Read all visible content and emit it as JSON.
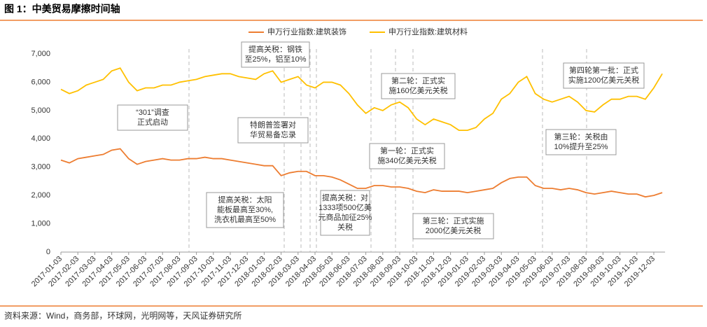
{
  "title": "图 1：中美贸易摩擦时间轴",
  "source": "资料来源：Wind，商务部，环球网，光明网等，天风证券研究所",
  "chart_data": {
    "type": "line",
    "categories": [
      "2017-01-03",
      null,
      "2017-02-03",
      null,
      "2017-03-03",
      null,
      "2017-04-03",
      null,
      "2017-05-03",
      null,
      "2017-06-03",
      null,
      "2017-07-03",
      null,
      "2017-08-03",
      null,
      "2017-09-03",
      null,
      "2017-10-03",
      null,
      "2017-11-03",
      null,
      "2017-12-03",
      null,
      "2018-01-03",
      null,
      "2018-02-03",
      null,
      "2018-03-03",
      null,
      "2018-04-03",
      null,
      "2018-05-03",
      null,
      "2018-06-03",
      null,
      "2018-07-03",
      null,
      "2018-08-03",
      null,
      "2018-09-03",
      null,
      "2018-10-03",
      null,
      "2018-11-03",
      null,
      "2018-12-03",
      null,
      "2019-01-03",
      null,
      "2019-02-03",
      null,
      "2019-03-03",
      null,
      "2019-04-03",
      null,
      "2019-05-03",
      null,
      "2019-06-03",
      null,
      "2019-07-03",
      null,
      "2019-08-03",
      null,
      "2019-09-03",
      null,
      "2019-10-03",
      null,
      "2019-11-03",
      null,
      "2019-12-03",
      null
    ],
    "series": [
      {
        "name": "申万行业指数:建筑装饰",
        "color": "#ed7d31",
        "values": [
          3250,
          3150,
          3300,
          3350,
          3400,
          3450,
          3600,
          3650,
          3300,
          3100,
          3200,
          3250,
          3300,
          3250,
          3250,
          3300,
          3300,
          3350,
          3300,
          3300,
          3250,
          3200,
          3150,
          3100,
          3050,
          3050,
          2700,
          2800,
          2850,
          2850,
          2700,
          2700,
          2650,
          2550,
          2400,
          2250,
          2250,
          2350,
          2350,
          2300,
          2300,
          2250,
          2150,
          2100,
          2200,
          2150,
          2150,
          2150,
          2100,
          2150,
          2200,
          2250,
          2450,
          2600,
          2650,
          2650,
          2350,
          2250,
          2250,
          2200,
          2250,
          2200,
          2100,
          2050,
          2100,
          2150,
          2100,
          2050,
          2050,
          1950,
          2000,
          2100
        ]
      },
      {
        "name": "申万行业指数:建筑材料",
        "color": "#ffc000",
        "values": [
          5750,
          5600,
          5700,
          5900,
          6000,
          6100,
          6400,
          6500,
          6000,
          5700,
          5800,
          5800,
          5900,
          5900,
          6000,
          6050,
          6100,
          6200,
          6250,
          6300,
          6300,
          6200,
          6150,
          6100,
          6300,
          6400,
          6000,
          6100,
          6200,
          5900,
          5800,
          6000,
          6000,
          5900,
          5600,
          5200,
          4900,
          5100,
          5000,
          5200,
          5300,
          5100,
          4700,
          4500,
          4700,
          4600,
          4500,
          4300,
          4300,
          4400,
          4700,
          4900,
          5400,
          5600,
          6000,
          6200,
          5600,
          5400,
          5300,
          5400,
          5500,
          5300,
          5000,
          4950,
          5200,
          5400,
          5400,
          5500,
          5500,
          5400,
          5800,
          6300
        ]
      }
    ],
    "ylim": [
      0,
      7000
    ],
    "yticks": [
      0,
      {
        "value": 1000,
        "label": "1,000"
      },
      {
        "value": 2000,
        "label": "2,000"
      },
      {
        "value": 3000,
        "label": "3,000"
      },
      {
        "value": 4000,
        "label": "4,000"
      },
      {
        "value": 5000,
        "label": "5,000"
      },
      {
        "value": 6000,
        "label": "6,000"
      },
      {
        "value": 7000,
        "label": "7,000"
      }
    ],
    "grid": false,
    "legend": "top",
    "annotations": [
      [
        "“301”调查",
        "正式启动"
      ],
      [
        "提高关税：钢铁",
        "至25%，铝至10%"
      ],
      [
        "特朗普签署对",
        "华贸易备忘录"
      ],
      [
        "提高关税：太阳",
        "能板最高至30%,",
        "洗衣机最高至50%"
      ],
      [
        "提高关税：对",
        "1333项500亿美",
        "元商品加征25%",
        "关税"
      ],
      [
        "第一轮：正式实",
        "施340亿美元关税"
      ],
      [
        "第二轮：正式实",
        "施160亿美元关税"
      ],
      [
        "第三轮：正式实施",
        "2000亿美元关税"
      ],
      [
        "第三轮：关税由",
        "10%提升至25%"
      ],
      [
        "第四轮第一批：正式",
        "实施1200亿美元关税"
      ]
    ]
  }
}
